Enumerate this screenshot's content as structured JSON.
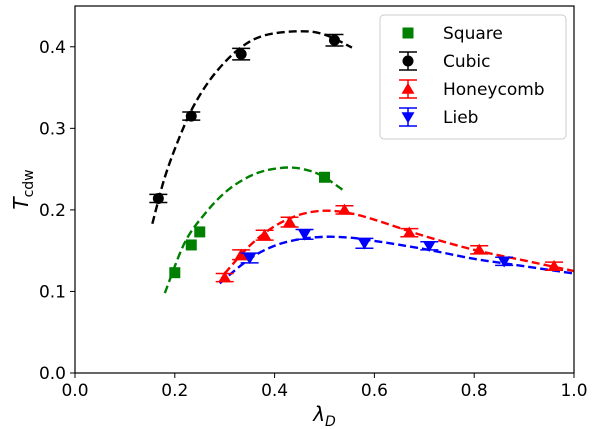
{
  "chart_data": {
    "type": "scatter",
    "title": "",
    "xlabel": "λ",
    "xlabel_sub": "D",
    "ylabel": "T",
    "ylabel_sub": "cdw",
    "xlim": [
      0.0,
      1.0
    ],
    "ylim": [
      0.0,
      0.45
    ],
    "xticks": [
      "0.0",
      "0.2",
      "0.4",
      "0.6",
      "0.8",
      "1.0"
    ],
    "yticks": [
      "0.0",
      "0.1",
      "0.2",
      "0.3",
      "0.4"
    ],
    "legend_position": "top-right",
    "series": [
      {
        "name": "Square",
        "marker": "square",
        "color": "#008000",
        "points": [
          {
            "x": 0.2,
            "y": 0.123
          },
          {
            "x": 0.233,
            "y": 0.157
          },
          {
            "x": 0.25,
            "y": 0.173
          },
          {
            "x": 0.5,
            "y": 0.24
          }
        ],
        "fit": [
          [
            0.18,
            0.098
          ],
          [
            0.22,
            0.16
          ],
          [
            0.26,
            0.195
          ],
          [
            0.3,
            0.221
          ],
          [
            0.34,
            0.238
          ],
          [
            0.38,
            0.248
          ],
          [
            0.43,
            0.252
          ],
          [
            0.47,
            0.248
          ],
          [
            0.5,
            0.24
          ],
          [
            0.54,
            0.223
          ]
        ]
      },
      {
        "name": "Cubic",
        "marker": "circle",
        "color": "#000000",
        "points": [
          {
            "x": 0.167,
            "y": 0.214,
            "err": 0.005
          },
          {
            "x": 0.233,
            "y": 0.315,
            "err": 0.005
          },
          {
            "x": 0.333,
            "y": 0.391,
            "err": 0.007
          },
          {
            "x": 0.52,
            "y": 0.408,
            "err": 0.007
          }
        ],
        "fit": [
          [
            0.155,
            0.183
          ],
          [
            0.18,
            0.24
          ],
          [
            0.21,
            0.29
          ],
          [
            0.24,
            0.33
          ],
          [
            0.28,
            0.367
          ],
          [
            0.33,
            0.398
          ],
          [
            0.38,
            0.414
          ],
          [
            0.45,
            0.419
          ],
          [
            0.5,
            0.415
          ],
          [
            0.555,
            0.399
          ]
        ]
      },
      {
        "name": "Honeycomb",
        "marker": "triangle-up",
        "color": "#ff0000",
        "points": [
          {
            "x": 0.3,
            "y": 0.117,
            "err": 0.005
          },
          {
            "x": 0.333,
            "y": 0.145,
            "err": 0.006
          },
          {
            "x": 0.38,
            "y": 0.169,
            "err": 0.006
          },
          {
            "x": 0.43,
            "y": 0.185,
            "err": 0.006
          },
          {
            "x": 0.54,
            "y": 0.2,
            "err": 0.005
          },
          {
            "x": 0.67,
            "y": 0.172,
            "err": 0.005
          },
          {
            "x": 0.81,
            "y": 0.151,
            "err": 0.005
          },
          {
            "x": 0.96,
            "y": 0.131,
            "err": 0.005
          }
        ],
        "fit": [
          [
            0.3,
            0.122
          ],
          [
            0.35,
            0.156
          ],
          [
            0.4,
            0.18
          ],
          [
            0.45,
            0.194
          ],
          [
            0.5,
            0.199
          ],
          [
            0.55,
            0.196
          ],
          [
            0.6,
            0.188
          ],
          [
            0.7,
            0.168
          ],
          [
            0.8,
            0.151
          ],
          [
            0.9,
            0.138
          ],
          [
            1.0,
            0.125
          ]
        ]
      },
      {
        "name": "Lieb",
        "marker": "triangle-down",
        "color": "#0000ff",
        "points": [
          {
            "x": 0.35,
            "y": 0.141,
            "err": 0.006
          },
          {
            "x": 0.46,
            "y": 0.17,
            "err": 0.006
          },
          {
            "x": 0.58,
            "y": 0.159,
            "err": 0.006
          },
          {
            "x": 0.71,
            "y": 0.156,
            "err": 0.005
          },
          {
            "x": 0.86,
            "y": 0.137,
            "err": 0.005
          }
        ],
        "fit": [
          [
            0.29,
            0.11
          ],
          [
            0.35,
            0.14
          ],
          [
            0.4,
            0.156
          ],
          [
            0.45,
            0.164
          ],
          [
            0.5,
            0.167
          ],
          [
            0.55,
            0.166
          ],
          [
            0.6,
            0.162
          ],
          [
            0.7,
            0.152
          ],
          [
            0.8,
            0.14
          ],
          [
            0.9,
            0.131
          ],
          [
            1.0,
            0.122
          ]
        ]
      }
    ]
  }
}
